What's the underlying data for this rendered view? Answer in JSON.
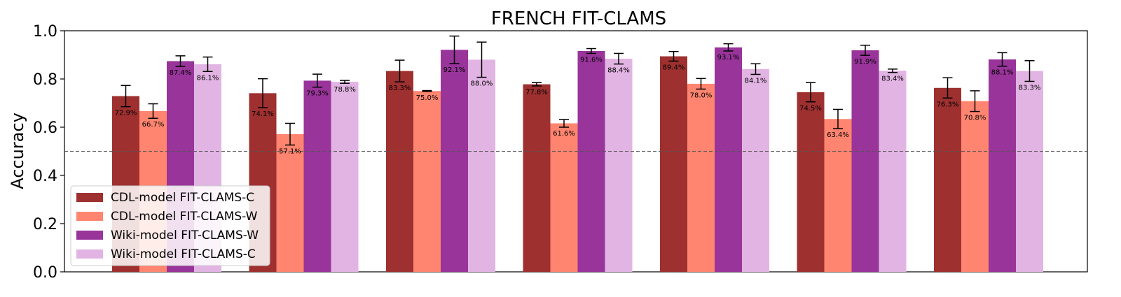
{
  "chart_data": {
    "type": "bar",
    "title": "FRENCH FIT-CLAMS",
    "xlabel": "",
    "ylabel": "Accuracy",
    "ylim": [
      0,
      1.0
    ],
    "yticks": [
      "0.0",
      "0.2",
      "0.4",
      "0.6",
      "0.8",
      "1.0"
    ],
    "reference_line": 0.5,
    "grid": false,
    "legend_position": "bottom-left",
    "categories": [
      "",
      "",
      "",
      "",
      "",
      "",
      ""
    ],
    "series": [
      {
        "name": "CDL-model FIT-CLAMS-C",
        "color": "#9e3030",
        "values": [
          0.729,
          0.741,
          0.833,
          0.778,
          0.894,
          0.745,
          0.763
        ],
        "labels": [
          "72.9%",
          "74.1%",
          "83.3%",
          "77.8%",
          "89.4%",
          "74.5%",
          "76.3%"
        ],
        "errors": [
          0.044,
          0.06,
          0.045,
          0.007,
          0.02,
          0.04,
          0.042
        ]
      },
      {
        "name": "CDL-model FIT-CLAMS-W",
        "color": "#ff8570",
        "values": [
          0.667,
          0.571,
          0.75,
          0.616,
          0.78,
          0.634,
          0.708
        ],
        "labels": [
          "66.7%",
          "57.1%",
          "75.0%",
          "61.6%",
          "78.0%",
          "63.4%",
          "70.8%"
        ],
        "errors": [
          0.03,
          0.045,
          0.002,
          0.016,
          0.022,
          0.04,
          0.043
        ]
      },
      {
        "name": "Wiki-model FIT-CLAMS-W",
        "color": "#98349a",
        "values": [
          0.874,
          0.793,
          0.921,
          0.916,
          0.931,
          0.919,
          0.881
        ],
        "labels": [
          "87.4%",
          "79.3%",
          "92.1%",
          "91.6%",
          "93.1%",
          "91.9%",
          "88.1%"
        ],
        "errors": [
          0.022,
          0.027,
          0.057,
          0.01,
          0.015,
          0.021,
          0.028
        ]
      },
      {
        "name": "Wiki-model FIT-CLAMS-C",
        "color": "#e2b4e3",
        "values": [
          0.861,
          0.788,
          0.88,
          0.884,
          0.841,
          0.834,
          0.833
        ],
        "labels": [
          "86.1%",
          "78.8%",
          "88.0%",
          "88.4%",
          "84.1%",
          "83.4%",
          "83.3%"
        ],
        "errors": [
          0.03,
          0.006,
          0.073,
          0.022,
          0.022,
          0.007,
          0.043
        ]
      }
    ]
  }
}
